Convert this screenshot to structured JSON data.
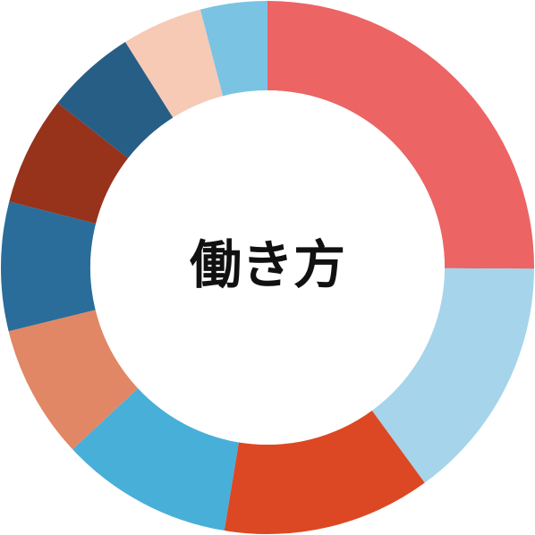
{
  "chart_data": {
    "type": "pie",
    "center_label": "働き方",
    "colors": [
      "#EC6464",
      "#A6D4EA",
      "#DC4823",
      "#48AFD8",
      "#E18765",
      "#2A6D9A",
      "#97321B",
      "#275E86",
      "#F6CAB5",
      "#7AC3E3"
    ],
    "values": [
      26.6,
      15.8,
      13.4,
      11.1,
      8.6,
      8.3,
      7.0,
      5.8,
      5.2,
      4.3
    ]
  }
}
